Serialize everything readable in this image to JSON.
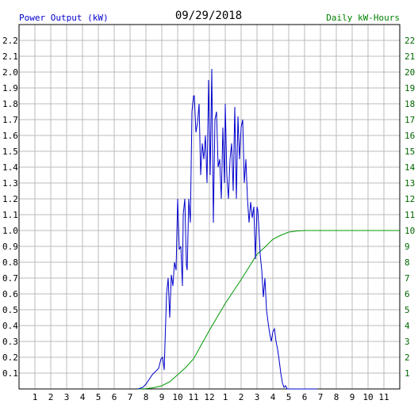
{
  "chart_data": {
    "type": "line",
    "date": "09/29/2018",
    "left_axis_label": "Power Output (kW)",
    "right_axis_label": "Daily kW-Hours",
    "x_ticks": [
      "1",
      "2",
      "3",
      "4",
      "5",
      "6",
      "7",
      "8",
      "9",
      "10",
      "11",
      "12",
      "1",
      "2",
      "3",
      "4",
      "5",
      "6",
      "7",
      "8",
      "9",
      "10",
      "11"
    ],
    "x_range_hours": [
      0,
      24
    ],
    "left_ylim": [
      0,
      2.3
    ],
    "left_ticks": [
      "0.1",
      "0.2",
      "0.3",
      "0.4",
      "0.5",
      "0.6",
      "0.7",
      "0.8",
      "0.9",
      "1.0",
      "1.1",
      "1.2",
      "1.3",
      "1.4",
      "1.5",
      "1.6",
      "1.7",
      "1.8",
      "1.9",
      "2.0",
      "2.1",
      "2.2"
    ],
    "right_ylim": [
      0,
      23
    ],
    "right_ticks": [
      "1",
      "2",
      "3",
      "4",
      "5",
      "6",
      "7",
      "8",
      "9",
      "10",
      "11",
      "12",
      "13",
      "14",
      "15",
      "16",
      "17",
      "18",
      "19",
      "20",
      "21",
      "22"
    ],
    "grid": true,
    "colors": {
      "power": "#0000cc",
      "energy": "#009900",
      "left_label": "#0000cc",
      "right_label": "#008000",
      "grid": "#bbbbbb"
    },
    "series": [
      {
        "name": "Power Output (kW)",
        "axis": "left",
        "x": [
          7.5,
          7.8,
          8.0,
          8.2,
          8.4,
          8.6,
          8.8,
          8.95,
          9.05,
          9.15,
          9.3,
          9.4,
          9.5,
          9.6,
          9.7,
          9.8,
          9.9,
          10.0,
          10.1,
          10.2,
          10.3,
          10.35,
          10.45,
          10.55,
          10.6,
          10.7,
          10.8,
          10.9,
          11.0,
          11.05,
          11.15,
          11.25,
          11.35,
          11.45,
          11.55,
          11.65,
          11.75,
          11.85,
          11.95,
          12.05,
          12.15,
          12.25,
          12.35,
          12.45,
          12.55,
          12.65,
          12.75,
          12.85,
          12.95,
          13.0,
          13.1,
          13.2,
          13.3,
          13.4,
          13.5,
          13.6,
          13.7,
          13.8,
          13.9,
          14.0,
          14.1,
          14.2,
          14.3,
          14.4,
          14.5,
          14.6,
          14.7,
          14.8,
          14.9,
          15.0,
          15.05,
          15.1,
          15.2,
          15.3,
          15.4,
          15.5,
          15.6,
          15.7,
          15.8,
          15.9,
          16.0,
          16.1,
          16.2,
          16.3,
          16.4,
          16.5,
          16.6,
          16.7,
          16.8,
          16.9,
          17.0,
          17.1,
          17.3,
          17.5,
          17.7,
          17.9,
          18.1,
          18.3,
          18.5,
          18.8
        ],
        "y": [
          0.0,
          0.01,
          0.03,
          0.06,
          0.09,
          0.11,
          0.13,
          0.19,
          0.2,
          0.12,
          0.6,
          0.7,
          0.45,
          0.72,
          0.65,
          0.8,
          0.75,
          1.2,
          0.88,
          0.9,
          0.65,
          1.1,
          1.2,
          0.78,
          0.75,
          1.2,
          1.05,
          1.75,
          1.85,
          1.85,
          1.62,
          1.68,
          1.8,
          1.35,
          1.55,
          1.45,
          1.6,
          1.3,
          1.95,
          1.35,
          2.02,
          1.05,
          1.7,
          1.75,
          1.4,
          1.45,
          1.2,
          1.65,
          1.3,
          1.8,
          1.35,
          1.2,
          1.45,
          1.55,
          1.25,
          1.78,
          1.2,
          1.72,
          1.45,
          1.65,
          1.7,
          1.3,
          1.45,
          1.2,
          1.05,
          1.18,
          1.08,
          1.15,
          0.82,
          1.15,
          1.13,
          1.05,
          0.85,
          0.75,
          0.58,
          0.7,
          0.5,
          0.42,
          0.35,
          0.3,
          0.36,
          0.38,
          0.3,
          0.25,
          0.18,
          0.1,
          0.04,
          0.01,
          0.02,
          0.0,
          0.0,
          0.0,
          0.0,
          0.0,
          0.0,
          0.0,
          0.0,
          0.0,
          0.0,
          0.0
        ]
      },
      {
        "name": "Daily kW-Hours",
        "axis": "right",
        "x": [
          7.5,
          8.0,
          8.5,
          9.0,
          9.5,
          10.0,
          10.5,
          11.0,
          11.5,
          12.0,
          12.5,
          13.0,
          13.5,
          14.0,
          14.5,
          15.0,
          15.5,
          16.0,
          16.5,
          17.0,
          17.5,
          18.0,
          18.5,
          19.0,
          20.0,
          21.0,
          22.0,
          23.0,
          24.0
        ],
        "y": [
          0.0,
          0.02,
          0.08,
          0.2,
          0.45,
          0.9,
          1.35,
          1.9,
          2.8,
          3.7,
          4.55,
          5.4,
          6.15,
          6.9,
          7.7,
          8.5,
          8.95,
          9.45,
          9.7,
          9.9,
          9.97,
          10.0,
          10.0,
          10.0,
          10.0,
          10.0,
          10.0,
          10.0,
          10.0
        ]
      }
    ]
  }
}
